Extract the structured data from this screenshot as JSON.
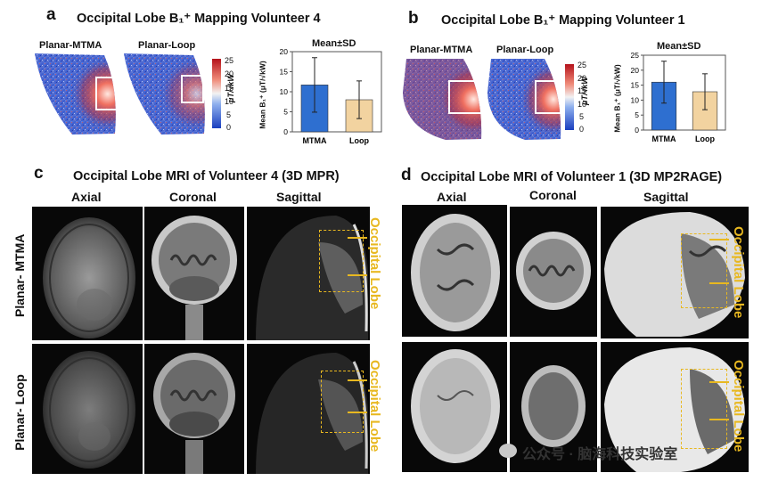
{
  "panel_a": {
    "letter": "a",
    "title": "Occipital Lobe B₁⁺ Mapping Volunteer 4",
    "map_labels": [
      "Planar-MTMA",
      "Planar-Loop"
    ],
    "colorbar": {
      "ticks": [
        "25",
        "20",
        "15",
        "10",
        "5",
        "0"
      ],
      "unit": "μT/√kW"
    }
  },
  "panel_b": {
    "letter": "b",
    "title": "Occipital Lobe B₁⁺ Mapping Volunteer 1",
    "map_labels": [
      "Planar-MTMA",
      "Planar-Loop"
    ],
    "colorbar": {
      "ticks": [
        "25",
        "20",
        "15",
        "10",
        "5",
        "0"
      ],
      "unit": "μT/√kW"
    }
  },
  "chart_data": [
    {
      "type": "bar",
      "title": "Mean±SD",
      "ylabel": "Mean B₁⁺ (μT/√kW)",
      "categories": [
        "MTMA",
        "Loop"
      ],
      "values": [
        11.7,
        8.0
      ],
      "sd": [
        6.8,
        4.7
      ],
      "ylim": [
        0,
        20
      ],
      "yticks": [
        "0",
        "5",
        "10",
        "15",
        "20"
      ],
      "colors": [
        "#2e6fd0",
        "#f2d3a0"
      ]
    },
    {
      "type": "bar",
      "title": "Mean±SD",
      "ylabel": "Mean B₁⁺ (μT/√kW)",
      "categories": [
        "MTMA",
        "Loop"
      ],
      "values": [
        16.0,
        12.8
      ],
      "sd": [
        7.0,
        6.0
      ],
      "ylim": [
        0,
        25
      ],
      "yticks": [
        "0",
        "5",
        "10",
        "15",
        "20",
        "25"
      ],
      "colors": [
        "#2e6fd0",
        "#f2d3a0"
      ]
    }
  ],
  "panel_c": {
    "letter": "c",
    "title": "Occipital Lobe MRI of Volunteer 4 (3D MPR)",
    "views": [
      "Axial",
      "Coronal",
      "Sagittal"
    ],
    "rows": [
      "Planar- MTMA",
      "Planar- Loop"
    ],
    "annotation": "Occipital Lobe"
  },
  "panel_d": {
    "letter": "d",
    "title": "Occipital Lobe MRI of Volunteer 1 (3D MP2RAGE)",
    "views": [
      "Axial",
      "Coronal",
      "Sagittal"
    ],
    "annotation": "Occipital Lobe"
  },
  "watermark": "公众号 · 脑海科技实验室",
  "colors": {
    "annotation": "#e8b820",
    "mtma_bar": "#2e6fd0",
    "loop_bar": "#f2d3a0"
  }
}
